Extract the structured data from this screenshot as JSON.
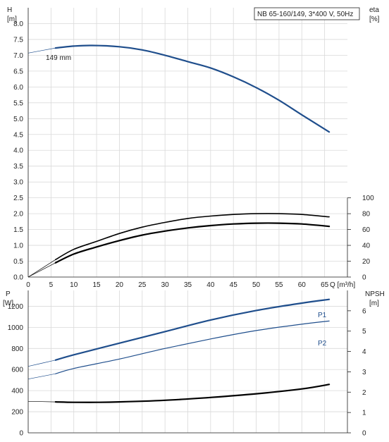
{
  "chart_data": [
    {
      "type": "line",
      "panel": "head_efficiency",
      "title_box": "NB 65-160/149, 3*400 V, 50Hz",
      "curve_label": "149 mm",
      "left_axis": {
        "label_line1": "H",
        "label_line2": "[m]",
        "range": [
          0,
          8.5
        ],
        "ticks": [
          "0.0",
          "0.5",
          "1.0",
          "1.5",
          "2.0",
          "2.5",
          "3.0",
          "3.5",
          "4.0",
          "4.5",
          "5.0",
          "5.5",
          "6.0",
          "6.5",
          "7.0",
          "7.5",
          "8.0"
        ]
      },
      "right_axis": {
        "label_line1": "eta",
        "label_line2": "[%]",
        "range": [
          0,
          100
        ],
        "ticks": [
          "0",
          "20",
          "40",
          "60",
          "80",
          "100"
        ]
      },
      "x_axis": {
        "label": "Q [m³/h]",
        "range": [
          0,
          70
        ],
        "ticks": [
          "0",
          "5",
          "10",
          "15",
          "20",
          "25",
          "30",
          "35",
          "40",
          "45",
          "50",
          "55",
          "60",
          "65"
        ]
      },
      "series": [
        {
          "key": "H",
          "axis": "left",
          "color": "#1f4e8c",
          "x": [
            0,
            6,
            10,
            14,
            20,
            25,
            30,
            35,
            40,
            45,
            50,
            55,
            60,
            66
          ],
          "y": [
            7.07,
            7.23,
            7.29,
            7.31,
            7.27,
            7.17,
            7.0,
            6.8,
            6.6,
            6.32,
            5.98,
            5.58,
            5.12,
            4.58
          ]
        },
        {
          "key": "eta_pump",
          "axis": "right",
          "color": "#000000",
          "x": [
            0,
            6,
            10,
            15,
            20,
            25,
            30,
            35,
            40,
            45,
            50,
            55,
            60,
            66
          ],
          "y": [
            0,
            22,
            35,
            45,
            55,
            63,
            69,
            74,
            77,
            79,
            80,
            80,
            79,
            76
          ]
        },
        {
          "key": "eta_total",
          "axis": "right",
          "color": "#000000",
          "x": [
            0,
            6,
            10,
            15,
            20,
            25,
            30,
            35,
            40,
            45,
            50,
            55,
            60,
            66
          ],
          "y": [
            0,
            18,
            29,
            38,
            46,
            53,
            58,
            62,
            65,
            67,
            68,
            68,
            67,
            64
          ]
        }
      ]
    },
    {
      "type": "line",
      "panel": "power_npsh",
      "left_axis": {
        "label_line1": "P",
        "label_line2": "[W]",
        "range": [
          0,
          1350
        ],
        "ticks": [
          "0",
          "200",
          "400",
          "600",
          "800",
          "1000",
          "1200"
        ]
      },
      "right_axis": {
        "label_line1": "NPSH",
        "label_line2": "[m]",
        "range": [
          0,
          7
        ],
        "ticks": [
          "0",
          "1",
          "2",
          "3",
          "4",
          "5",
          "6"
        ]
      },
      "x_axis": {
        "range": [
          0,
          70
        ]
      },
      "series": [
        {
          "key": "P1",
          "label": "P1",
          "axis": "left",
          "color": "#1f4e8c",
          "x": [
            0,
            6,
            10,
            20,
            30,
            40,
            50,
            60,
            66
          ],
          "y": [
            630,
            690,
            740,
            850,
            960,
            1070,
            1160,
            1230,
            1265
          ]
        },
        {
          "key": "P2",
          "label": "P2",
          "axis": "left",
          "color": "#1f4e8c",
          "x": [
            0,
            6,
            10,
            20,
            30,
            40,
            50,
            60,
            66
          ],
          "y": [
            510,
            560,
            610,
            700,
            800,
            890,
            970,
            1030,
            1060
          ]
        },
        {
          "key": "NPSH",
          "axis": "right",
          "color": "#000000",
          "x": [
            0,
            6,
            10,
            15,
            20,
            30,
            40,
            50,
            60,
            66
          ],
          "y": [
            1.55,
            1.52,
            1.5,
            1.5,
            1.52,
            1.6,
            1.74,
            1.92,
            2.16,
            2.38
          ]
        }
      ]
    }
  ]
}
